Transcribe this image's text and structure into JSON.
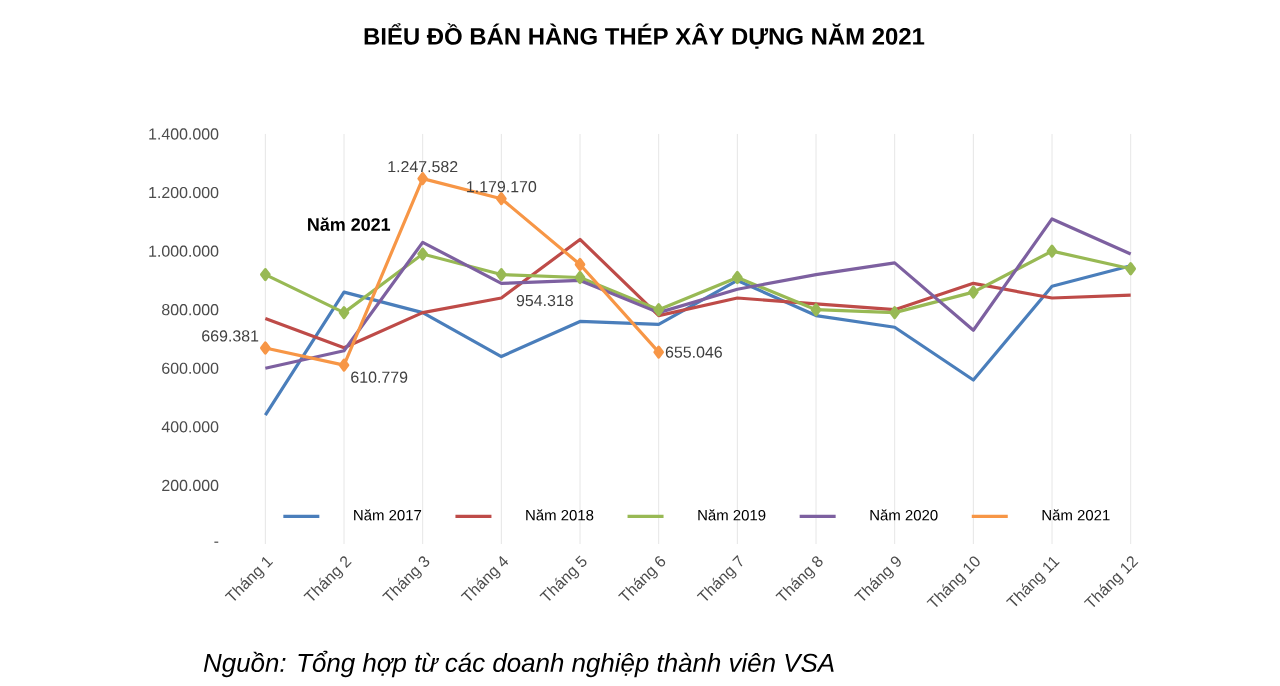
{
  "chart_data": {
    "type": "line",
    "title": "BIỂU ĐỒ BÁN HÀNG THÉP XÂY DỰNG NĂM 2021",
    "categories": [
      "Tháng 1",
      "Tháng 2",
      "Tháng 3",
      "Tháng 4",
      "Tháng 5",
      "Tháng 6",
      "Tháng 7",
      "Tháng 8",
      "Tháng 9",
      "Tháng 10",
      "Tháng 11",
      "Tháng 12"
    ],
    "series": [
      {
        "name": "Năm 2017",
        "color": "#4a7ebb",
        "values": [
          440000,
          860000,
          790000,
          640000,
          760000,
          750000,
          900000,
          780000,
          740000,
          560000,
          880000,
          950000
        ]
      },
      {
        "name": "Năm 2018",
        "color": "#be4b48",
        "values": [
          770000,
          670000,
          790000,
          840000,
          1040000,
          780000,
          840000,
          820000,
          800000,
          890000,
          840000,
          850000
        ]
      },
      {
        "name": "Năm 2019",
        "color": "#98b954",
        "marker": "diamond",
        "values": [
          920000,
          790000,
          990000,
          920000,
          910000,
          800000,
          910000,
          800000,
          790000,
          860000,
          1000000,
          940000
        ]
      },
      {
        "name": "Năm 2020",
        "color": "#7d60a0",
        "values": [
          600000,
          660000,
          1030000,
          890000,
          900000,
          790000,
          870000,
          920000,
          960000,
          730000,
          1110000,
          990000
        ]
      },
      {
        "name": "Năm 2021",
        "color": "#f79646",
        "marker": "diamond",
        "values": [
          669381,
          610779,
          1247582,
          1179170,
          954318,
          655046,
          null,
          null,
          null,
          null,
          null,
          null
        ],
        "value_labels": [
          "669.381",
          "610.779",
          "1.247.582",
          "1.179.170",
          "954.318",
          "655.046",
          null,
          null,
          null,
          null,
          null,
          null
        ]
      }
    ],
    "ylim": [
      0,
      1400000
    ],
    "yticks": [
      {
        "value": 0,
        "label": "-"
      },
      {
        "value": 200000,
        "label": "200.000"
      },
      {
        "value": 400000,
        "label": "400.000"
      },
      {
        "value": 600000,
        "label": "600.000"
      },
      {
        "value": 800000,
        "label": "800.000"
      },
      {
        "value": 1000000,
        "label": "1.000.000"
      },
      {
        "value": 1200000,
        "label": "1.200.000"
      },
      {
        "value": 1400000,
        "label": "1.400.000"
      }
    ],
    "grid": "x",
    "legend": "bottom",
    "annotations": [
      "Năm 2021",
      "Nguồn: Tổng hợp từ các doanh nghiệp thành viên VSA"
    ]
  }
}
